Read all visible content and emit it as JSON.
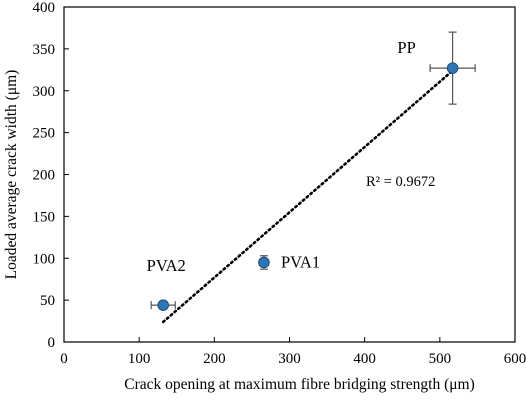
{
  "chart_data": {
    "type": "scatter",
    "xlabel": "Crack opening at maximum fibre bridging strength  (μm)",
    "ylabel": "Loaded average crack width  (μm)",
    "xlim": [
      0,
      600
    ],
    "ylim": [
      0,
      400
    ],
    "xticks": [
      0,
      100,
      200,
      300,
      400,
      500,
      600
    ],
    "yticks": [
      0,
      50,
      100,
      150,
      200,
      250,
      300,
      350,
      400
    ],
    "grid": false,
    "legend": "none",
    "marker_color": "#2E75B6",
    "marker_edge_color": "#1F4E79",
    "points": [
      {
        "label": "PP",
        "x": 517,
        "y": 327,
        "x_err": 30,
        "y_err": 43
      },
      {
        "label": "PVA1",
        "x": 266,
        "y": 95,
        "x_err": 5,
        "y_err": 8
      },
      {
        "label": "PVA2",
        "x": 132,
        "y": 44,
        "x_err": 16,
        "y_err": 3
      }
    ],
    "trendline": {
      "style": "dotted",
      "x_range": [
        132,
        517
      ],
      "y_range": [
        24,
        324
      ],
      "r2_text": "R² = 0.9672"
    }
  }
}
